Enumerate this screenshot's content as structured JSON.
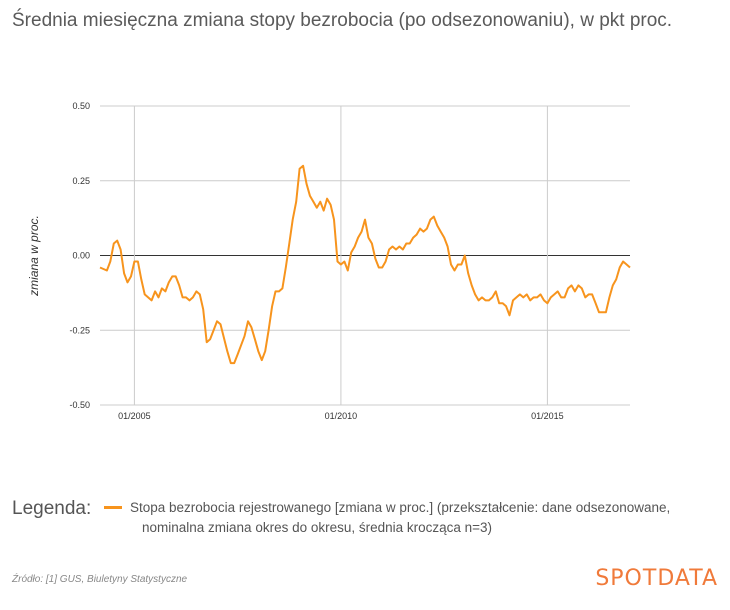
{
  "title": "Średnia miesięczna zmiana stopy bezrobocia (po odsezonowaniu), w pkt proc.",
  "legend_title": "Legenda:",
  "legend_line1": "Stopa bezrobocia rejestrowanego [zmiana w proc.] (przekształcenie: dane odsezonowane,",
  "legend_line2": "nominalna zmiana okres do okresu, średnia krocząca n=3)",
  "source": "Źródło: [1] GUS, Biuletyny Statystyczne",
  "brand": "SPOTDATA",
  "colors": {
    "line": "#f7941d",
    "grid": "#cccccc",
    "zero": "#333333",
    "brand": "#f07a3a"
  },
  "chart_data": {
    "type": "line",
    "title": "Średnia miesięczna zmiana stopy bezrobocia (po odsezonowaniu), w pkt proc.",
    "ylabel": "zmiana w proc.",
    "xlabel": "",
    "ylim": [
      -0.5,
      0.5
    ],
    "xlim": [
      "2004-03",
      "2017-01"
    ],
    "yticks": [
      0.5,
      0.25,
      0.0,
      -0.25,
      -0.5
    ],
    "ytick_labels": [
      "0.50",
      "0.25",
      "0.00",
      "-0.25",
      "-0.50"
    ],
    "xticks": [
      "2005-01",
      "2010-01",
      "2015-01"
    ],
    "xtick_labels": [
      "01/2005",
      "01/2010",
      "01/2015"
    ],
    "grid": true,
    "legend": "below",
    "series": [
      {
        "name": "Stopa bezrobocia rejestrowanego [zmiana w proc.] (przekształcenie: dane odsezonowane, nominalna zmiana okres do okresu, średnia krocząca n=3)",
        "color": "#f7941d",
        "x": [
          "2004-03",
          "2004-05",
          "2004-06",
          "2004-07",
          "2004-08",
          "2004-09",
          "2004-10",
          "2004-11",
          "2004-12",
          "2005-01",
          "2005-02",
          "2005-03",
          "2005-04",
          "2005-06",
          "2005-07",
          "2005-08",
          "2005-09",
          "2005-10",
          "2005-11",
          "2005-12",
          "2006-01",
          "2006-02",
          "2006-03",
          "2006-04",
          "2006-05",
          "2006-06",
          "2006-07",
          "2006-08",
          "2006-09",
          "2006-10",
          "2006-11",
          "2006-12",
          "2007-01",
          "2007-02",
          "2007-04",
          "2007-05",
          "2007-06",
          "2007-07",
          "2007-08",
          "2007-09",
          "2007-10",
          "2007-11",
          "2007-12",
          "2008-01",
          "2008-02",
          "2008-03",
          "2008-04",
          "2008-05",
          "2008-06",
          "2008-07",
          "2008-08",
          "2008-09",
          "2008-10",
          "2008-11",
          "2008-12",
          "2009-01",
          "2009-02",
          "2009-03",
          "2009-04",
          "2009-05",
          "2009-06",
          "2009-07",
          "2009-08",
          "2009-09",
          "2009-10",
          "2009-11",
          "2009-12",
          "2010-01",
          "2010-02",
          "2010-03",
          "2010-04",
          "2010-05",
          "2010-06",
          "2010-07",
          "2010-08",
          "2010-09",
          "2010-10",
          "2010-11",
          "2010-12",
          "2011-01",
          "2011-02",
          "2011-03",
          "2011-04",
          "2011-05",
          "2011-06",
          "2011-07",
          "2011-08",
          "2011-09",
          "2011-10",
          "2011-11",
          "2011-12",
          "2012-01",
          "2012-02",
          "2012-03",
          "2012-04",
          "2012-05",
          "2012-06",
          "2012-07",
          "2012-08",
          "2012-09",
          "2012-10",
          "2012-11",
          "2012-12",
          "2013-01",
          "2013-02",
          "2013-03",
          "2013-04",
          "2013-05",
          "2013-06",
          "2013-07",
          "2013-08",
          "2013-09",
          "2013-10",
          "2013-11",
          "2013-12",
          "2014-01",
          "2014-02",
          "2014-03",
          "2014-04",
          "2014-05",
          "2014-06",
          "2014-07",
          "2014-08",
          "2014-09",
          "2014-10",
          "2014-11",
          "2014-12",
          "2015-01",
          "2015-02",
          "2015-03",
          "2015-04",
          "2015-05",
          "2015-06",
          "2015-07",
          "2015-08",
          "2015-09",
          "2015-10",
          "2015-11",
          "2015-12",
          "2016-01",
          "2016-02",
          "2016-03",
          "2016-04",
          "2016-05",
          "2016-06",
          "2016-07",
          "2016-08",
          "2016-09",
          "2016-10",
          "2016-11",
          "2016-12",
          "2017-01"
        ],
        "y": [
          -0.04,
          -0.05,
          -0.02,
          0.04,
          0.05,
          0.02,
          -0.06,
          -0.09,
          -0.07,
          -0.02,
          -0.02,
          -0.08,
          -0.13,
          -0.15,
          -0.12,
          -0.14,
          -0.11,
          -0.12,
          -0.09,
          -0.07,
          -0.07,
          -0.1,
          -0.14,
          -0.14,
          -0.15,
          -0.14,
          -0.12,
          -0.13,
          -0.18,
          -0.29,
          -0.28,
          -0.25,
          -0.22,
          -0.23,
          -0.32,
          -0.36,
          -0.36,
          -0.33,
          -0.3,
          -0.27,
          -0.22,
          -0.24,
          -0.28,
          -0.32,
          -0.35,
          -0.32,
          -0.25,
          -0.17,
          -0.12,
          -0.12,
          -0.11,
          -0.04,
          0.04,
          0.12,
          0.18,
          0.29,
          0.3,
          0.24,
          0.2,
          0.18,
          0.16,
          0.18,
          0.15,
          0.19,
          0.17,
          0.12,
          -0.02,
          -0.03,
          -0.02,
          -0.05,
          0.01,
          0.03,
          0.06,
          0.08,
          0.12,
          0.06,
          0.04,
          -0.01,
          -0.04,
          -0.04,
          -0.02,
          0.02,
          0.03,
          0.02,
          0.03,
          0.02,
          0.04,
          0.04,
          0.06,
          0.07,
          0.09,
          0.08,
          0.09,
          0.12,
          0.13,
          0.1,
          0.08,
          0.06,
          0.03,
          -0.03,
          -0.05,
          -0.03,
          -0.03,
          0.0,
          -0.06,
          -0.1,
          -0.13,
          -0.15,
          -0.14,
          -0.15,
          -0.15,
          -0.14,
          -0.12,
          -0.16,
          -0.16,
          -0.17,
          -0.2,
          -0.15,
          -0.14,
          -0.13,
          -0.14,
          -0.13,
          -0.15,
          -0.14,
          -0.14,
          -0.13,
          -0.15,
          -0.16,
          -0.14,
          -0.13,
          -0.12,
          -0.14,
          -0.14,
          -0.11,
          -0.1,
          -0.12,
          -0.1,
          -0.11,
          -0.14,
          -0.13,
          -0.13,
          -0.16,
          -0.19,
          -0.19,
          -0.19,
          -0.14,
          -0.1,
          -0.08,
          -0.04,
          -0.02,
          -0.03,
          -0.04
        ]
      }
    ]
  }
}
